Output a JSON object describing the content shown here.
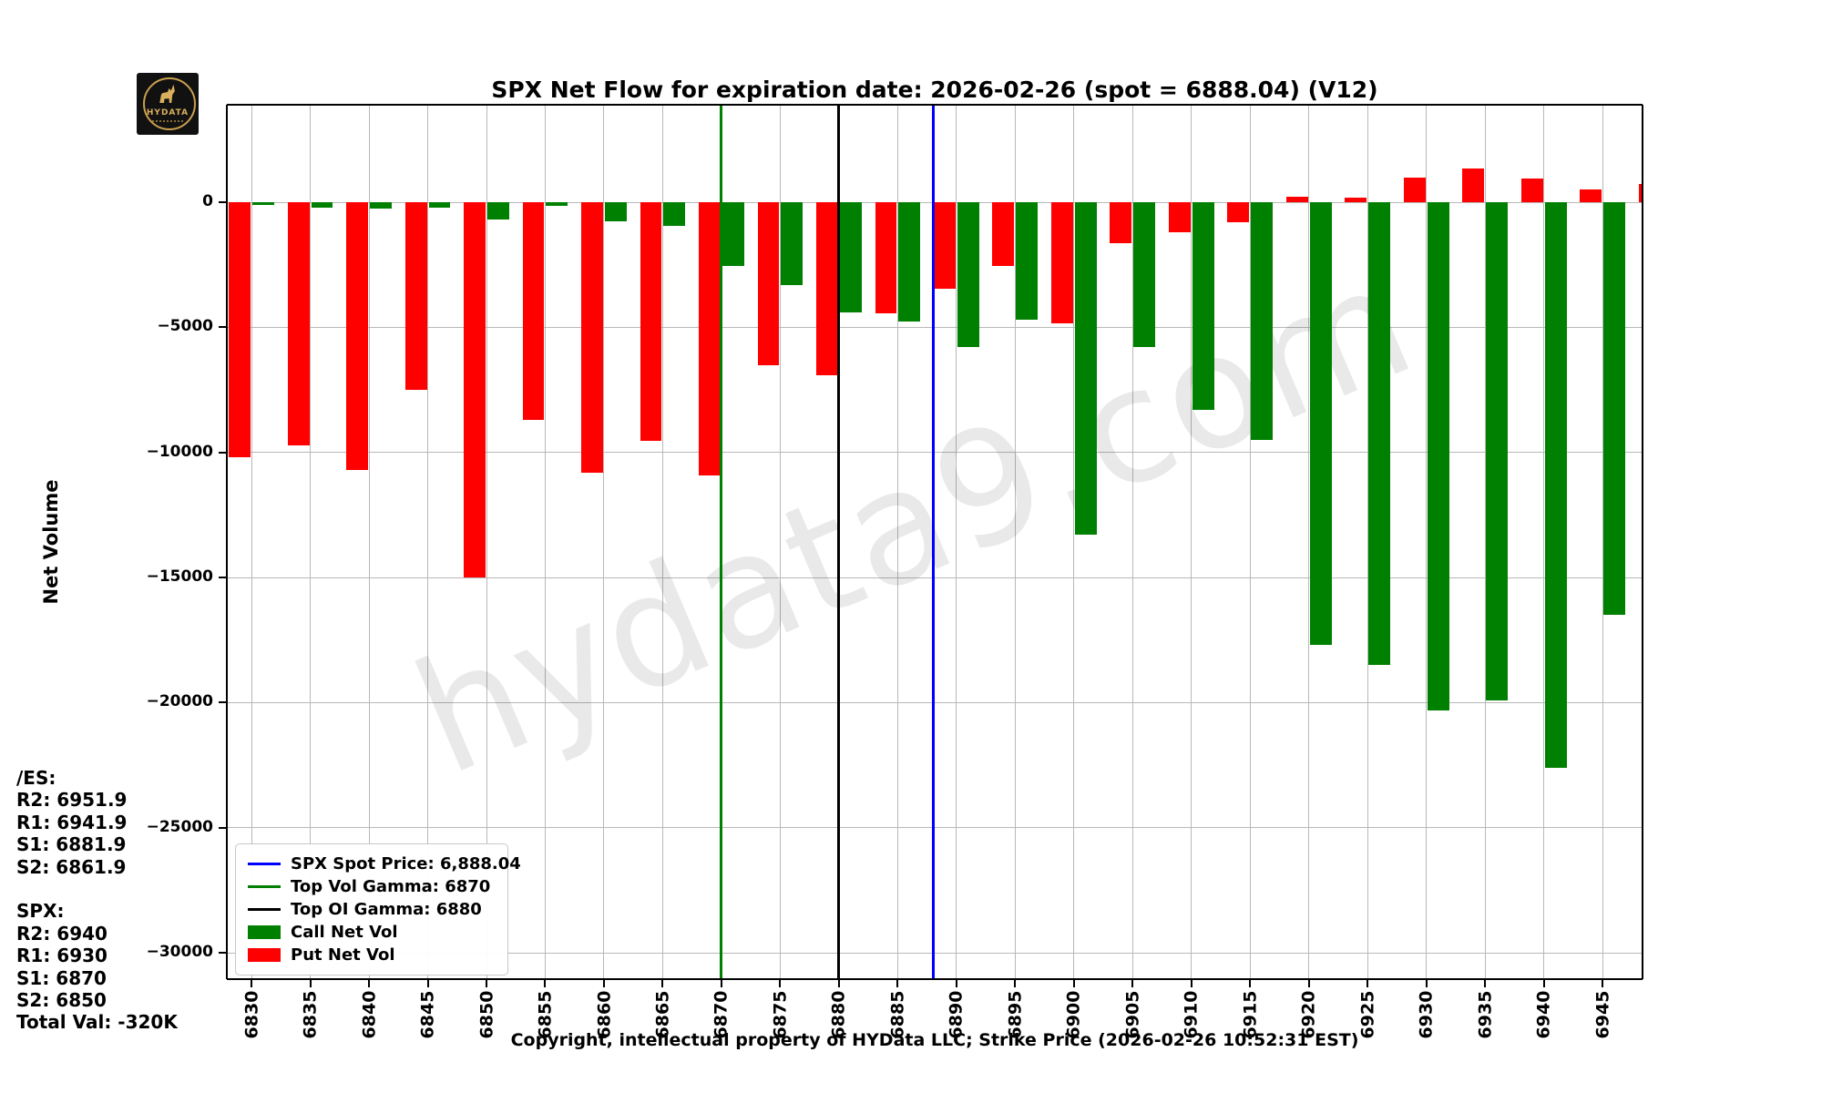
{
  "title": "SPX Net Flow for expiration date: 2026-02-26 (spot = 6888.04) (V12)",
  "logo": {
    "brand": "HYDATA"
  },
  "axis": {
    "ylabel": "Net Volume"
  },
  "footer": "Copyright, intellectual property of HYData LLC; Strike Price (2026-02-26 10:52:31 EST)",
  "watermark": "hydata9.com",
  "info_panel": {
    "lines": [
      "/ES:",
      "R2: 6951.9",
      "R1: 6941.9",
      "S1: 6881.9",
      "S2: 6861.9",
      "",
      "SPX:",
      "R2: 6940",
      "R1: 6930",
      "S1: 6870",
      "S2: 6850",
      "Total Val: -320K"
    ]
  },
  "legend": [
    {
      "type": "line",
      "color": "#0000ff",
      "label": "SPX Spot Price: 6,888.04"
    },
    {
      "type": "line",
      "color": "#008000",
      "label": "Top Vol Gamma: 6870"
    },
    {
      "type": "line",
      "color": "#000000",
      "label": "Top OI Gamma: 6880"
    },
    {
      "type": "patch",
      "color": "#008000",
      "label": "Call Net Vol"
    },
    {
      "type": "patch",
      "color": "#ff0000",
      "label": "Put Net Vol"
    }
  ],
  "chart_data": {
    "type": "bar",
    "title": "SPX Net Flow for expiration date: 2026-02-26 (spot = 6888.04) (V12)",
    "xlabel": "Strike Price",
    "ylabel": "Net Volume",
    "xlim": [
      6827.9,
      6948.4
    ],
    "ylim": [
      -31050,
      3900
    ],
    "grid": true,
    "legend_position": "lower-left",
    "yticks": [
      0,
      -5000,
      -10000,
      -15000,
      -20000,
      -25000,
      -30000
    ],
    "xticks": [
      6830,
      6835,
      6840,
      6845,
      6850,
      6855,
      6860,
      6865,
      6870,
      6875,
      6880,
      6885,
      6890,
      6895,
      6900,
      6905,
      6910,
      6915,
      6920,
      6925,
      6930,
      6935,
      6940,
      6945
    ],
    "strikes": [
      6830,
      6835,
      6840,
      6845,
      6850,
      6855,
      6860,
      6865,
      6870,
      6875,
      6880,
      6885,
      6890,
      6895,
      6900,
      6905,
      6910,
      6915,
      6920,
      6925,
      6930,
      6935,
      6940,
      6945,
      6950
    ],
    "series": [
      {
        "name": "Put Net Vol",
        "color": "#ff0000",
        "values": [
          -10200,
          -9700,
          -10700,
          -7500,
          -15000,
          -8700,
          -10800,
          -9550,
          -10900,
          -6500,
          -6900,
          -4450,
          -3450,
          -2550,
          -4850,
          -1650,
          -1200,
          -800,
          230,
          200,
          1000,
          1350,
          950,
          500,
          750
        ]
      },
      {
        "name": "Call Net Vol",
        "color": "#008000",
        "values": [
          -100,
          -200,
          -250,
          -200,
          -700,
          -150,
          -750,
          -950,
          -2550,
          -3300,
          -4400,
          -4750,
          -5800,
          -4700,
          -13300,
          -5800,
          -8300,
          -9500,
          -17700,
          -18500,
          -20300,
          -19900,
          -22600,
          -16500,
          null
        ]
      }
    ],
    "vlines": [
      {
        "name": "spx-spot-line",
        "x": 6888.04,
        "color": "#0000ff",
        "width": 3,
        "label": "SPX Spot Price: 6,888.04"
      },
      {
        "name": "top-vol-gamma-line",
        "x": 6870,
        "color": "#008000",
        "width": 3,
        "label": "Top Vol Gamma: 6870"
      },
      {
        "name": "top-oi-gamma-line",
        "x": 6880,
        "color": "#000000",
        "width": 3,
        "label": "Top OI Gamma: 6880"
      }
    ]
  }
}
